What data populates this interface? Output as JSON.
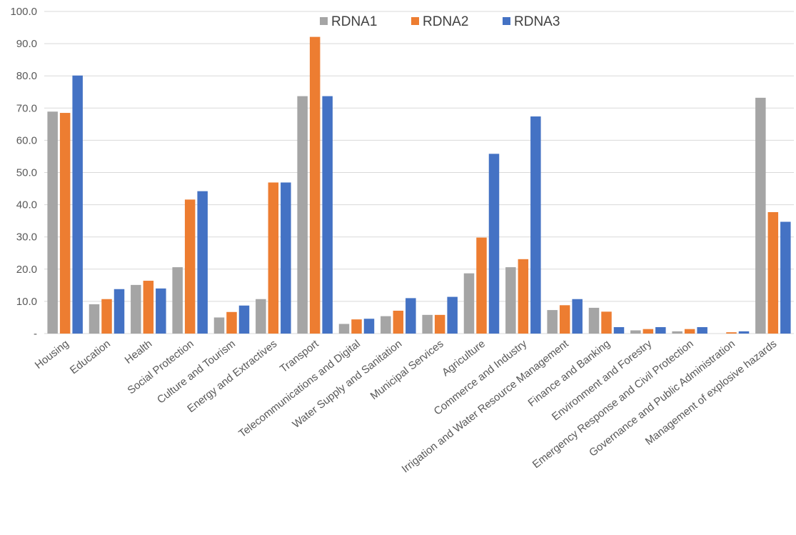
{
  "chart_data": {
    "type": "bar",
    "title": "",
    "xlabel": "",
    "ylabel": "",
    "ylim": [
      0,
      100
    ],
    "yticks": [
      0,
      10,
      20,
      30,
      40,
      50,
      60,
      70,
      80,
      90,
      100
    ],
    "ytick_labels": [
      "-",
      "10.0",
      "20.0",
      "30.0",
      "40.0",
      "50.0",
      "60.0",
      "70.0",
      "80.0",
      "90.0",
      "100.0"
    ],
    "grid": true,
    "legend_position": "top",
    "categories": [
      "Housing",
      "Education",
      "Health",
      "Social Protection",
      "Culture and Tourism",
      "Energy and Extractives",
      "Transport",
      "Telecommunications and Digital",
      "Water Supply and Sanitation",
      "Municipal Services",
      "Agriculture",
      "Commerce and Industry",
      "Irrigation and Water Resource Management",
      "Finance and Banking",
      "Environment and Forestry",
      "Emergency Response and Civil Protection",
      "Governance and Public Administration",
      "Management of explosive hazards"
    ],
    "series": [
      {
        "name": "RDNA1",
        "color": "#a5a5a5",
        "values": [
          68.9,
          9.1,
          15.1,
          20.6,
          5.0,
          10.7,
          73.7,
          3.0,
          5.4,
          5.8,
          18.7,
          20.6,
          7.3,
          8.0,
          1.0,
          0.7,
          0,
          73.2
        ]
      },
      {
        "name": "RDNA2",
        "color": "#ed7d31",
        "values": [
          68.5,
          10.7,
          16.4,
          41.6,
          6.7,
          46.9,
          92.1,
          4.4,
          7.1,
          5.8,
          29.8,
          23.1,
          8.8,
          6.8,
          1.4,
          1.4,
          0.4,
          37.7
        ]
      },
      {
        "name": "RDNA3",
        "color": "#4472c4",
        "values": [
          80.1,
          13.8,
          14.0,
          44.2,
          8.7,
          46.9,
          73.7,
          4.6,
          11.0,
          11.4,
          55.8,
          67.4,
          10.7,
          2.0,
          2.0,
          2.0,
          0.7,
          34.7
        ]
      }
    ]
  }
}
